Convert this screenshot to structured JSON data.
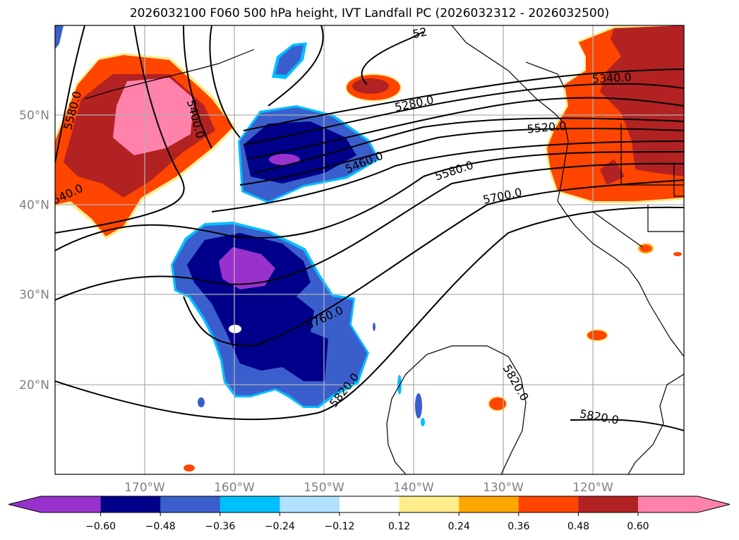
{
  "title": "2026032100 F060 500 hPa height, IVT Landfall PC (2026032312 - 2026032500)",
  "axes": {
    "lat_labels": [
      "50°N",
      "40°N",
      "30°N",
      "20°N"
    ],
    "lon_labels": [
      "170°W",
      "160°W",
      "150°W",
      "140°W",
      "130°W",
      "120°W"
    ]
  },
  "contour_labels": {
    "c5580_left": "5580.0",
    "c5400": "5400.0",
    "c5340_left": "540.0",
    "c5280": "5280.0",
    "c5340_right": "5340.0",
    "c5520": "5520.0",
    "c5460": "5460.0",
    "c5580": "5580.0",
    "c5700": "5700.0",
    "c5760": "5760.0",
    "c5820_a": "5820.0",
    "c5820_b": "5820.0",
    "c5820_c": "5820.0",
    "c52_top": "52"
  },
  "colorbar": {
    "colors": [
      "#9932CC",
      "#00008B",
      "#3A5FCD",
      "#00BFFF",
      "#B0E2FF",
      "#FFFFFF",
      "#FFEC8B",
      "#FFA500",
      "#FF4500",
      "#B22222",
      "#FF82AB"
    ],
    "tick_labels": [
      "−0.60",
      "−0.48",
      "−0.36",
      "−0.24",
      "−0.12",
      "0.12",
      "0.24",
      "0.36",
      "0.48",
      "0.60"
    ],
    "ticks": [
      -0.6,
      -0.48,
      -0.36,
      -0.24,
      -0.12,
      0.12,
      0.24,
      0.36,
      0.48,
      0.6
    ]
  }
}
